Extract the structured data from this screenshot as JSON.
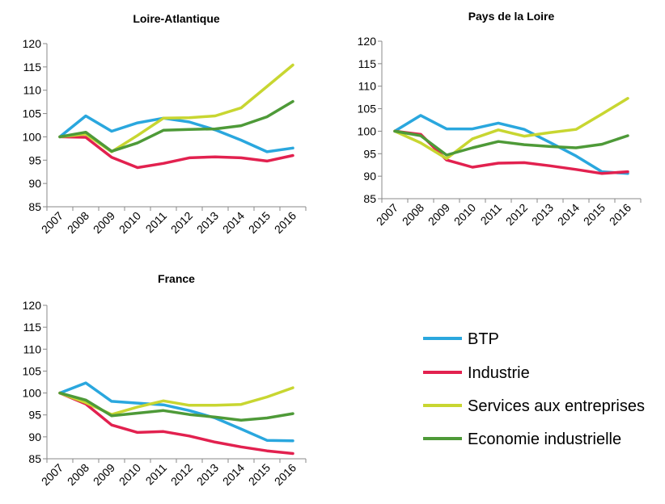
{
  "chart_data": [
    {
      "type": "line",
      "title": "Loire-Atlantique",
      "categories": [
        "2007",
        "2008",
        "2009",
        "2010",
        "2011",
        "2012",
        "2013",
        "2014",
        "2015",
        "2016"
      ],
      "ylim": [
        85,
        120
      ],
      "yticks": [
        85,
        90,
        95,
        100,
        105,
        110,
        115,
        120
      ],
      "series": [
        {
          "name": "BTP",
          "values": [
            100,
            104.5,
            101.2,
            103,
            104,
            103.2,
            101.5,
            99.3,
            96.8,
            97.6
          ]
        },
        {
          "name": "Industrie",
          "values": [
            100,
            99.9,
            95.6,
            93.4,
            94.3,
            95.5,
            95.7,
            95.5,
            94.8,
            96
          ]
        },
        {
          "name": "Services aux entreprises",
          "values": [
            100,
            100.6,
            96.8,
            100.3,
            104,
            104.1,
            104.5,
            106.2,
            110.8,
            115.4
          ]
        },
        {
          "name": "Economie industrielle",
          "values": [
            100,
            101,
            96.9,
            98.7,
            101.4,
            101.6,
            101.7,
            102.4,
            104.3,
            107.6
          ]
        }
      ]
    },
    {
      "type": "line",
      "title": "Pays de la Loire",
      "categories": [
        "2007",
        "2008",
        "2009",
        "2010",
        "2011",
        "2012",
        "2013",
        "2014",
        "2015",
        "2016"
      ],
      "ylim": [
        85,
        120
      ],
      "yticks": [
        85,
        90,
        95,
        100,
        105,
        110,
        115,
        120
      ],
      "series": [
        {
          "name": "BTP",
          "values": [
            100,
            103.5,
            100.5,
            100.5,
            101.8,
            100.4,
            97.5,
            94.5,
            91,
            90.6
          ]
        },
        {
          "name": "Industrie",
          "values": [
            100,
            99.3,
            93.6,
            92,
            92.9,
            93,
            92.3,
            91.5,
            90.6,
            91
          ]
        },
        {
          "name": "Services aux entreprises",
          "values": [
            100,
            97.4,
            93.9,
            98.3,
            100.3,
            98.9,
            99.7,
            100.4,
            103.8,
            107.3
          ]
        },
        {
          "name": "Economie industrielle",
          "values": [
            100,
            99,
            94.7,
            96.3,
            97.7,
            97,
            96.6,
            96.3,
            97.1,
            99
          ]
        }
      ]
    },
    {
      "type": "line",
      "title": "France",
      "categories": [
        "2007",
        "2008",
        "2009",
        "2010",
        "2011",
        "2012",
        "2013",
        "2014",
        "2015",
        "2016"
      ],
      "ylim": [
        85,
        120
      ],
      "yticks": [
        85,
        90,
        95,
        100,
        105,
        110,
        115,
        120
      ],
      "series": [
        {
          "name": "BTP",
          "values": [
            100,
            102.3,
            98.1,
            97.7,
            97.3,
            96,
            94.3,
            91.8,
            89.2,
            89.1
          ]
        },
        {
          "name": "Industrie",
          "values": [
            100,
            97.5,
            92.7,
            91,
            91.2,
            90.2,
            88.8,
            87.7,
            86.8,
            86.2
          ]
        },
        {
          "name": "Services aux entreprises",
          "values": [
            100,
            97.8,
            95.1,
            96.8,
            98.2,
            97.2,
            97.2,
            97.4,
            99.1,
            101.2
          ]
        },
        {
          "name": "Economie industrielle",
          "values": [
            100,
            98.4,
            94.8,
            95.4,
            96,
            95.1,
            94.5,
            93.8,
            94.3,
            95.3
          ]
        }
      ]
    }
  ],
  "legend": {
    "items": [
      {
        "label": "BTP",
        "color": "#2AA7DE"
      },
      {
        "label": "Industrie",
        "color": "#E2214F"
      },
      {
        "label": "Services aux entreprises",
        "color": "#C8D631"
      },
      {
        "label": "Economie industrielle",
        "color": "#4E9A38"
      }
    ]
  }
}
